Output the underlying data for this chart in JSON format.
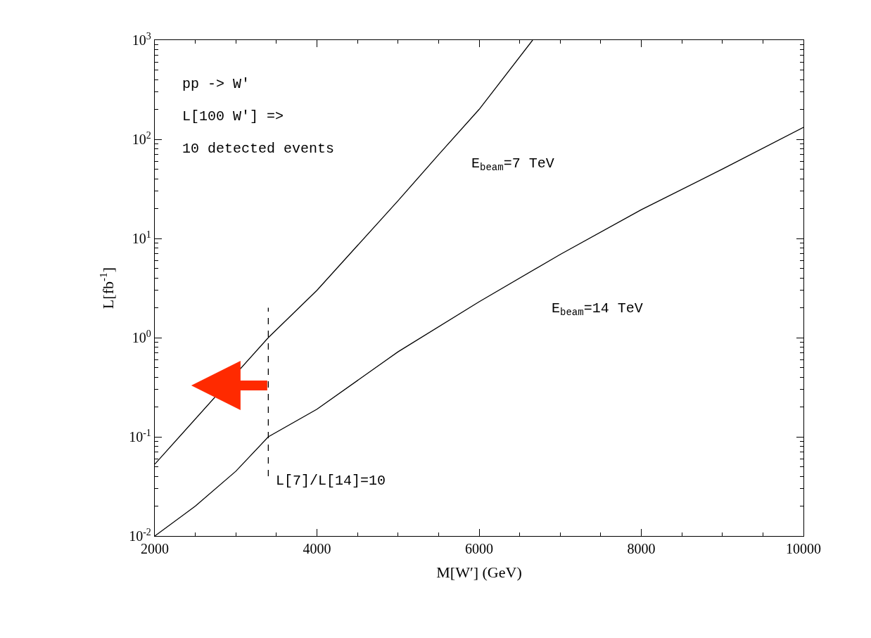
{
  "chart_data": {
    "type": "line",
    "xlabel": "M[W′] (GeV)",
    "ylabel": "L[fb$^{-1}$]",
    "series": [
      {
        "color": "#000000",
        "x": [
          2000,
          3400,
          4000,
          4500,
          5000,
          5500,
          6000,
          6660
        ],
        "values": [
          0.053,
          1.0,
          3.0,
          8.5,
          24,
          70,
          200,
          1000
        ]
      },
      {
        "color": "#000000",
        "x": [
          2000,
          2500,
          3000,
          3400,
          4000,
          5000,
          6000,
          7000,
          8000,
          9000,
          10000
        ],
        "values": [
          0.01,
          0.02,
          0.045,
          0.1,
          0.19,
          0.72,
          2.3,
          6.9,
          19.5,
          50,
          132
        ]
      },
      {
        "color": "#000000",
        "line_style": "dashed",
        "x": [
          3400,
          3400
        ],
        "values": [
          0.04,
          2
        ]
      }
    ],
    "annotations": [
      "pp -> W′",
      "L[100 W′] =>",
      "10 detected events",
      "E$_{beam}$=7 TeV",
      "E$_{beam}$=14 TeV",
      "L[7]/L[14]=10"
    ],
    "log": "y",
    "xlim": [
      2000,
      10000
    ],
    "ylim": [
      0.01,
      1000
    ],
    "xticks": [
      2000,
      4000,
      6000,
      8000,
      10000
    ],
    "yticks": [
      {
        "value": 0.01,
        "label": "10$^{-2}$"
      },
      {
        "value": 0.1,
        "label": "10$^{-1}$"
      },
      {
        "value": 1,
        "label": "10$^{0}$"
      },
      {
        "value": 10,
        "label": "10$^{1}$"
      },
      {
        "value": 100,
        "label": "10$^{2}$"
      },
      {
        "value": 1000,
        "label": "10$^{3}$"
      }
    ],
    "marker": "none"
  }
}
